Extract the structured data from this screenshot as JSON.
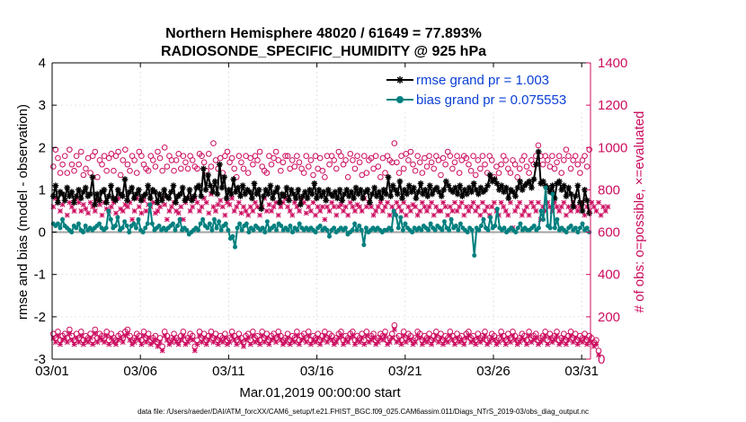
{
  "chart_data": {
    "type": "line",
    "title_line1": "Northern Hemisphere 48020 / 61649 = 77.893%",
    "title_line2": "RADIOSONDE_SPECIFIC_HUMIDITY @ 925 hPa",
    "xlabel": "Mar.01,2019 00:00:00 start",
    "ylabel_left": "rmse and bias (model - observation)",
    "ylabel_right": "# of obs: o=possible, ×=evaluated",
    "footnote": "data file: /Users/raeder/DAI/ATM_forcXX/CAM6_setup/f.e21.FHIST_BGC.f09_025.CAM6assim.011/Diags_NTrS_2019-03/obs_diag_output.nc",
    "x_ticks": [
      "03/01",
      "03/06",
      "03/11",
      "03/16",
      "03/21",
      "03/26",
      "03/31"
    ],
    "x_tick_days": [
      0,
      5,
      10,
      15,
      20,
      25,
      30
    ],
    "xlim": [
      0,
      30.5
    ],
    "ylim_left": [
      -3,
      4
    ],
    "yticks_left": [
      "-3",
      "-2",
      "-1",
      "0",
      "1",
      "2",
      "3",
      "4"
    ],
    "ylim_right": [
      0,
      1400
    ],
    "yticks_right": [
      "0",
      "200",
      "400",
      "600",
      "800",
      "1000",
      "1200",
      "1400"
    ],
    "legend": [
      {
        "name": "rmse grand pr = 1.003",
        "color": "#000000",
        "marker": "star"
      },
      {
        "name": "bias grand pr = 0.075553",
        "color": "#00807f",
        "marker": "dot"
      }
    ],
    "series": [
      {
        "name": "rmse",
        "color": "#000000",
        "values": [
          0.85,
          1.1,
          0.7,
          0.95,
          0.9,
          0.75,
          1.05,
          0.85,
          0.95,
          0.7,
          0.85,
          1.0,
          0.8,
          0.95,
          1.05,
          0.85,
          0.9,
          1.3,
          0.65,
          0.9,
          0.75,
          0.95,
          1.0,
          0.7,
          0.85,
          1.1,
          0.8,
          0.75,
          1.0,
          0.9,
          0.85,
          1.25,
          0.75,
          0.95,
          1.05,
          0.8,
          0.9,
          1.0,
          0.75,
          0.85,
          0.9,
          1.1,
          0.8,
          1.0,
          0.95,
          0.7,
          0.9,
          0.75,
          1.0,
          0.85,
          0.8,
          0.95,
          1.1,
          0.7,
          0.85,
          0.9,
          1.05,
          0.75,
          0.8,
          1.0,
          0.75,
          0.85,
          1.05,
          1.1,
          0.85,
          1.5,
          1.0,
          1.35,
          1.1,
          0.95,
          1.2,
          0.9,
          1.6,
          1.05,
          1.3,
          0.8,
          1.0,
          0.9,
          1.25,
          0.95,
          1.05,
          0.85,
          1.1,
          0.9,
          1.0,
          0.95,
          0.8,
          1.15,
          0.9,
          1.0,
          0.55,
          0.85,
          1.0,
          0.9,
          1.1,
          0.8,
          0.95,
          1.05,
          0.7,
          0.9,
          0.85,
          1.05,
          0.75,
          1.0,
          0.9,
          0.8,
          1.0,
          0.65,
          0.85,
          0.95,
          0.8,
          1.0,
          0.9,
          1.15,
          0.8,
          1.0,
          0.85,
          0.95,
          0.75,
          1.0,
          0.9,
          0.85,
          0.95,
          0.8,
          1.0,
          0.75,
          0.9,
          1.0,
          0.85,
          0.95,
          0.8,
          1.05,
          0.9,
          1.0,
          0.8,
          0.95,
          1.0,
          0.7,
          0.9,
          1.05,
          0.85,
          0.95,
          0.8,
          1.0,
          0.9,
          1.3,
          0.85,
          1.1,
          1.0,
          0.9,
          1.2,
          0.8,
          1.0,
          0.9,
          1.1,
          0.95,
          1.05,
          0.8,
          0.95,
          1.15,
          0.9,
          1.0,
          0.85,
          1.1,
          0.9,
          1.0,
          1.05,
          0.95,
          0.85,
          1.0,
          1.2,
          1.1,
          1.0,
          0.95,
          1.05,
          0.9,
          1.1,
          0.85,
          1.0,
          0.9,
          1.05,
          0.95,
          1.15,
          1.0,
          0.9,
          1.05,
          0.95,
          1.0,
          1.1,
          1.35,
          1.2,
          1.25,
          1.15,
          1.0,
          1.1,
          0.95,
          1.05,
          0.8,
          1.0,
          0.95,
          0.85,
          1.05,
          1.2,
          1.0,
          1.1,
          1.15,
          1.2,
          1.05,
          1.25,
          1.6,
          1.9,
          1.15,
          1.2,
          1.1,
          1.05,
          0.95,
          1.1,
          0.8,
          1.15,
          1.2,
          1.0,
          1.1,
          0.85,
          1.05,
          0.9,
          0.6,
          0.85,
          1.1,
          0.7,
          0.5,
          1.0,
          0.75,
          0.45
        ]
      },
      {
        "name": "bias",
        "color": "#00807f",
        "values": [
          0.2,
          0.15,
          0.2,
          0.1,
          0.3,
          0.15,
          0.1,
          0.05,
          0.0,
          0.15,
          0.1,
          0.2,
          0.05,
          0.0,
          0.15,
          0.05,
          0.1,
          0.05,
          0.1,
          0.15,
          0.2,
          0.1,
          0.05,
          0.1,
          0.5,
          0.3,
          0.1,
          0.15,
          0.35,
          0.05,
          0.1,
          0.25,
          0.15,
          0.0,
          0.15,
          0.2,
          0.1,
          0.3,
          0.05,
          0.0,
          0.1,
          0.2,
          0.65,
          0.2,
          0.05,
          0.1,
          0.15,
          0.05,
          0.1,
          0.05,
          0.1,
          0.15,
          0.2,
          0.05,
          0.15,
          0.3,
          0.05,
          0.1,
          0.05,
          -0.05,
          0.0,
          0.05,
          0.1,
          0.05,
          0.2,
          0.3,
          0.15,
          0.1,
          0.2,
          0.05,
          0.3,
          0.1,
          0.25,
          0.05,
          0.15,
          0.2,
          0.05,
          -0.15,
          -0.1,
          -0.35,
          0.1,
          0.2,
          0.05,
          0.15,
          0.2,
          0.0,
          0.1,
          0.05,
          0.15,
          0.1,
          0.05,
          0.1,
          0.0,
          0.25,
          0.05,
          0.1,
          0.15,
          0.05,
          0.2,
          0.15,
          0.05,
          0.1,
          0.05,
          0.15,
          0.0,
          0.1,
          0.05,
          0.2,
          0.1,
          0.05,
          0.1,
          0.05,
          0.1,
          0.05,
          0.0,
          0.1,
          0.15,
          0.05,
          0.1,
          0.05,
          -0.1,
          0.05,
          0.1,
          0.0,
          0.05,
          0.1,
          0.05,
          0.1,
          -0.05,
          0.0,
          0.05,
          0.2,
          0.05,
          0.15,
          0.05,
          -0.3,
          0.1,
          0.0,
          0.05,
          0.1,
          0.05,
          0.1,
          0.05,
          0.0,
          0.05,
          0.05,
          0.1,
          0.05,
          0.5,
          0.4,
          0.1,
          0.35,
          0.05,
          0.2,
          0.1,
          0.05,
          0.0,
          0.1,
          0.05,
          0.1,
          0.05,
          0.15,
          0.1,
          0.05,
          0.2,
          0.1,
          0.05,
          0.15,
          0.1,
          0.05,
          0.25,
          0.1,
          0.05,
          0.3,
          0.1,
          0.15,
          0.05,
          0.2,
          0.1,
          0.05,
          0.0,
          0.1,
          0.05,
          -0.55,
          0.1,
          0.05,
          0.15,
          0.3,
          0.1,
          0.05,
          0.35,
          0.1,
          0.15,
          0.55,
          0.1,
          0.05,
          0.1,
          0.0,
          0.05,
          0.1,
          0.05,
          0.0,
          0.1,
          0.2,
          0.05,
          0.1,
          0.05,
          0.05,
          0.1,
          0.15,
          0.05,
          0.1,
          0.5,
          0.3,
          1.05,
          0.15,
          0.1,
          0.9,
          0.1,
          0.3,
          0.05,
          0.1,
          0.05,
          0.0,
          0.1,
          0.15,
          0.05,
          0.1,
          0.0,
          0.1,
          0.2,
          0.05,
          0.1,
          0.0
        ]
      }
    ],
    "obs_possible": [
      910,
      990,
      950,
      880,
      920,
      960,
      880,
      990,
      920,
      890,
      960,
      920,
      980,
      870,
      900,
      950,
      880,
      960,
      980,
      860,
      940,
      920,
      960,
      890,
      950,
      970,
      890,
      960,
      980,
      870,
      940,
      990,
      920,
      890,
      960,
      940,
      880,
      980,
      960,
      920,
      900,
      890,
      960,
      940,
      910,
      980,
      950,
      890,
      1000,
      910,
      960,
      940,
      890,
      940,
      970,
      900,
      960,
      930,
      900,
      960,
      940,
      910,
      900,
      970,
      960,
      930,
      890,
      970,
      910,
      1020,
      940,
      900,
      950,
      880,
      960,
      980,
      930,
      950,
      900,
      860,
      960,
      930,
      900,
      960,
      880,
      950,
      920,
      960,
      940,
      980,
      910,
      890,
      880,
      960,
      920,
      950,
      980,
      940,
      890,
      930,
      960,
      960,
      900,
      940,
      910,
      960,
      930,
      900,
      880,
      960,
      910,
      940,
      870,
      960,
      900,
      950,
      890,
      860,
      960,
      920,
      960,
      940,
      900,
      980,
      960,
      920,
      940,
      860,
      970,
      940,
      900,
      960,
      930,
      870,
      960,
      880,
      940,
      950,
      900,
      960,
      910,
      860,
      950,
      880,
      960,
      940,
      930,
      1020,
      930,
      880,
      960,
      900,
      970,
      940,
      980,
      920,
      890,
      960,
      930,
      880,
      950,
      910,
      960,
      930,
      900,
      960,
      940,
      870,
      950,
      920,
      980,
      960,
      900,
      930,
      960,
      880,
      940,
      960,
      950,
      920,
      890,
      960,
      870,
      940,
      900,
      960,
      920,
      880,
      960,
      940,
      860,
      910,
      880,
      920,
      960,
      940,
      900,
      880,
      940,
      920,
      860,
      900,
      940,
      960,
      910,
      880,
      940,
      920,
      960,
      1010,
      960,
      920,
      960,
      940,
      910,
      960,
      900,
      930,
      960,
      880,
      940,
      990,
      960,
      900,
      940,
      960,
      920,
      880,
      940,
      960,
      910,
      990
    ],
    "obs_evaluated": [
      720,
      760,
      740,
      700,
      730,
      750,
      680,
      740,
      720,
      700,
      760,
      740,
      700,
      730,
      710,
      690,
      740,
      720,
      700,
      750,
      730,
      680,
      740,
      710,
      700,
      720,
      740,
      690,
      760,
      710,
      700,
      730,
      720,
      740,
      660,
      700,
      760,
      720,
      690,
      750,
      700,
      730,
      720,
      740,
      690,
      700,
      720,
      760,
      730,
      660,
      700,
      720,
      740,
      700,
      690,
      720,
      660,
      740,
      760,
      700,
      720,
      760,
      740,
      700,
      720,
      760,
      740,
      690,
      780,
      720,
      700,
      730,
      750,
      720,
      680,
      740,
      730,
      760,
      700,
      720,
      740,
      690,
      720,
      700,
      680,
      720,
      700,
      740,
      720,
      680,
      720,
      760,
      700,
      730,
      700,
      720,
      740,
      680,
      720,
      740,
      760,
      720,
      700,
      680,
      740,
      720,
      700,
      760,
      740,
      690,
      720,
      700,
      740,
      680,
      720,
      700,
      720,
      660,
      720,
      700,
      740,
      720,
      680,
      720,
      730,
      700,
      720,
      680,
      740,
      720,
      700,
      730,
      720,
      700,
      760,
      720,
      740,
      720,
      680,
      700,
      720,
      740,
      700,
      720,
      740,
      680,
      720,
      700,
      740,
      720,
      700,
      740,
      680,
      720,
      700,
      730,
      720,
      680,
      700,
      740,
      720,
      700,
      720,
      740,
      680,
      720,
      700,
      700,
      740,
      720,
      680,
      720,
      700,
      740,
      700,
      720,
      740,
      680,
      720,
      700,
      720,
      740,
      700,
      720,
      680,
      740,
      700,
      720,
      680,
      720,
      740,
      700,
      680,
      740,
      720,
      700,
      680,
      740,
      620,
      700,
      720,
      740,
      680,
      700,
      720,
      680,
      740,
      720,
      700,
      740,
      660,
      720,
      700,
      740,
      720,
      700,
      740,
      720,
      700,
      720,
      740,
      680,
      720,
      700,
      740,
      720,
      700,
      720,
      740,
      680,
      720,
      700,
      740,
      720,
      700,
      740,
      680,
      720,
      700,
      720
    ],
    "obs_possible_low": [
      120,
      100,
      130,
      90,
      110,
      120,
      100,
      140,
      110,
      90,
      120,
      100,
      130,
      90,
      110,
      100,
      120,
      90,
      140,
      100,
      120,
      110,
      100,
      130,
      90,
      120,
      100,
      90,
      110,
      120,
      100,
      130,
      140,
      110,
      90,
      100,
      120,
      110,
      90,
      130,
      100,
      120,
      90,
      100,
      110,
      80,
      100,
      60,
      130,
      110,
      90,
      100,
      120,
      100,
      90,
      110,
      130,
      90,
      100,
      120,
      110,
      60,
      90,
      130,
      100,
      120,
      90,
      110,
      130,
      100,
      120,
      90,
      110,
      100,
      120,
      90,
      100,
      130,
      110,
      90,
      120,
      100,
      80,
      110,
      120,
      90,
      130,
      100,
      110,
      90,
      130,
      100,
      120,
      90,
      110,
      120,
      100,
      130,
      110,
      90,
      100,
      120,
      90,
      110,
      100,
      130,
      90,
      110,
      120,
      100,
      130,
      90,
      110,
      100,
      120,
      90,
      110,
      130,
      100,
      120,
      110,
      90,
      100,
      120,
      130,
      90,
      110,
      100,
      120,
      130,
      90,
      110,
      100,
      120,
      90,
      130,
      100,
      110,
      120,
      90,
      100,
      120,
      110,
      130,
      90,
      100,
      120,
      160,
      100,
      110,
      90,
      130,
      100,
      120,
      110,
      90,
      100,
      130,
      120,
      90,
      110,
      100,
      120,
      90,
      110,
      130,
      100,
      120,
      90,
      110,
      100,
      130,
      110,
      90,
      120,
      100,
      110,
      90,
      120,
      130,
      100,
      110,
      90,
      120,
      100,
      110,
      130,
      90,
      100,
      120,
      110,
      90,
      100,
      130,
      110,
      90,
      120,
      100,
      130,
      110,
      90,
      100,
      120,
      110,
      90,
      130,
      100,
      110,
      120,
      90,
      100,
      110,
      130,
      90,
      120,
      100,
      110,
      130,
      90,
      100,
      120,
      90,
      110,
      130,
      100,
      120,
      90,
      110,
      100,
      120,
      90,
      110,
      100,
      80,
      90,
      40
    ],
    "obs_evaluated_low": [
      100,
      80,
      110,
      70,
      90,
      100,
      80,
      120,
      90,
      70,
      100,
      80,
      110,
      70,
      90,
      80,
      100,
      70,
      120,
      80,
      100,
      90,
      80,
      110,
      70,
      100,
      80,
      70,
      90,
      100,
      80,
      110,
      120,
      90,
      70,
      80,
      100,
      90,
      70,
      110,
      80,
      100,
      70,
      80,
      90,
      60,
      80,
      40,
      110,
      90,
      70,
      80,
      100,
      80,
      70,
      90,
      110,
      70,
      80,
      100,
      90,
      40,
      70,
      110,
      80,
      100,
      70,
      90,
      110,
      80,
      100,
      70,
      90,
      80,
      100,
      70,
      80,
      110,
      90,
      70,
      100,
      80,
      60,
      90,
      100,
      70,
      110,
      80,
      90,
      70,
      110,
      80,
      100,
      70,
      90,
      100,
      80,
      110,
      90,
      70,
      80,
      100,
      70,
      90,
      80,
      110,
      70,
      90,
      100,
      80,
      110,
      70,
      90,
      80,
      100,
      70,
      90,
      110,
      80,
      100,
      90,
      70,
      80,
      100,
      110,
      70,
      90,
      80,
      100,
      110,
      70,
      90,
      80,
      100,
      70,
      110,
      80,
      90,
      100,
      70,
      80,
      100,
      90,
      110,
      70,
      80,
      100,
      140,
      80,
      90,
      70,
      110,
      80,
      100,
      90,
      70,
      80,
      110,
      100,
      70,
      90,
      80,
      100,
      70,
      90,
      110,
      80,
      100,
      70,
      90,
      80,
      110,
      90,
      70,
      100,
      80,
      90,
      70,
      100,
      110,
      80,
      90,
      70,
      100,
      80,
      90,
      110,
      70,
      80,
      100,
      90,
      70,
      80,
      110,
      90,
      70,
      100,
      80,
      110,
      90,
      70,
      80,
      100,
      90,
      70,
      110,
      80,
      90,
      100,
      70,
      80,
      90,
      110,
      70,
      100,
      80,
      90,
      110,
      70,
      80,
      100,
      70,
      90,
      110,
      80,
      100,
      70,
      90,
      80,
      100,
      70,
      90,
      80,
      60,
      70,
      20
    ]
  }
}
